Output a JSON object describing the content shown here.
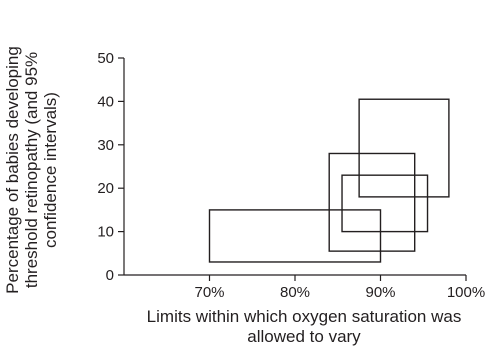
{
  "chart_data": {
    "type": "box",
    "xlabel": [
      "Limits within which oxygen saturation was",
      "allowed to vary"
    ],
    "ylabel": [
      "Percentage of babies developing",
      "threshold retinopathy (and 95%",
      "confidence intervals)"
    ],
    "xlim": [
      60,
      100
    ],
    "ylim": [
      0,
      50
    ],
    "x_ticks": [
      70,
      80,
      90,
      100
    ],
    "x_tick_labels": [
      "70%",
      "80%",
      "90%",
      "100%"
    ],
    "y_ticks": [
      0,
      10,
      20,
      30,
      40,
      50
    ],
    "y_tick_labels": [
      "0",
      "10",
      "20",
      "30",
      "40",
      "50"
    ],
    "grid": false,
    "boxes": [
      {
        "x_min": 70,
        "x_max": 90,
        "y_min": 3,
        "y_max": 15
      },
      {
        "x_min": 84,
        "x_max": 94,
        "y_min": 5.5,
        "y_max": 28
      },
      {
        "x_min": 85.5,
        "x_max": 95.5,
        "y_min": 10,
        "y_max": 23
      },
      {
        "x_min": 87.5,
        "x_max": 98,
        "y_min": 18,
        "y_max": 40.5
      }
    ]
  }
}
